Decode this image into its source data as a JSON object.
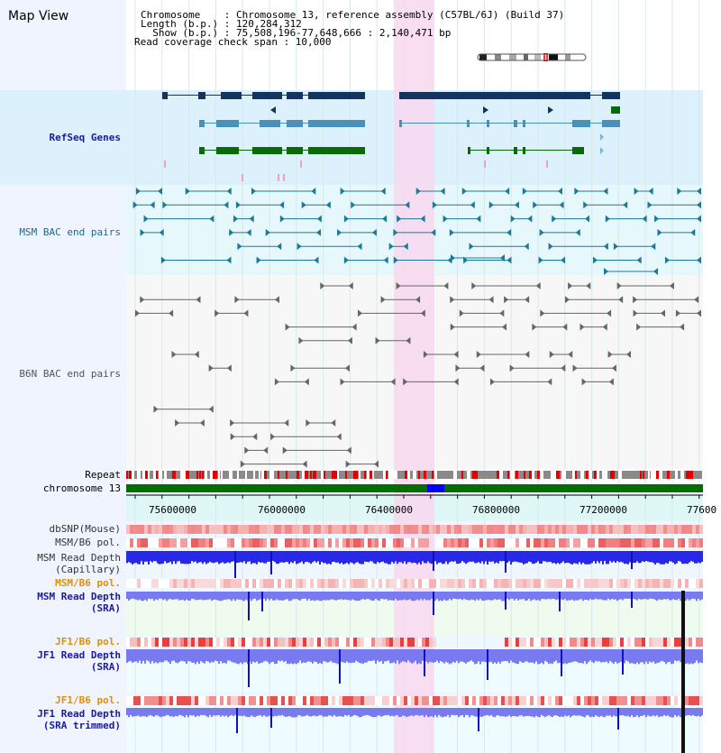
{
  "header": {
    "title": "Map View",
    "info_lines": [
      "Chromosome    : Chromosome 13, reference assembly (C57BL/6J) (Build 37)",
      "Length (b.p.) : 120,284,312",
      "  Show (b.p.) : 75,508,196-77,648,666 : 2,140,471 bp",
      "Read coverage check span : 10,000"
    ]
  },
  "tracks": {
    "refseq": "RefSeq Genes",
    "msm_bac": "MSM BAC end pairs",
    "b6n_bac": "B6N BAC end pairs",
    "repeat": "Repeat",
    "chromosome": "chromosome 13",
    "dbsnp": "dbSNP(Mouse)",
    "msm_b6_pol_1": "MSM/B6 pol.",
    "msm_depth_cap_1": "MSM Read Depth",
    "msm_depth_cap_2": "(Capillary)",
    "msm_b6_pol_2": "MSM/B6 pol.",
    "msm_depth_sra_1": "MSM Read Depth",
    "msm_depth_sra_2": "(SRA)",
    "jf1_b6_pol_1": "JF1/B6 pol.",
    "jf1_depth_sra_1": "JF1 Read Depth",
    "jf1_depth_sra_2": "(SRA)",
    "jf1_b6_pol_2": "JF1/B6 pol.",
    "jf1_depth_trim_1": "JF1 Read Depth",
    "jf1_depth_trim_2": "(SRA trimmed)"
  },
  "axis": {
    "ticks": [
      "75600000",
      "76000000",
      "76400000",
      "76800000",
      "77200000",
      "77600"
    ]
  },
  "colors": {
    "refseq_bg": "#dcf1fb",
    "gene_dark": "#12345f",
    "gene_mid": "#4a90b8",
    "gene_green": "#0a6a0a",
    "msm_bac_color": "#1a7a9a",
    "b6n_bac_color": "#666666",
    "highlight": "#f8d8f0",
    "depth_blue": "#2828e8",
    "depth_lightblue": "#7a7af0",
    "label_blue": "#1a1aa0",
    "label_orange": "#e09000",
    "label_teal": "#1a6a8a"
  }
}
